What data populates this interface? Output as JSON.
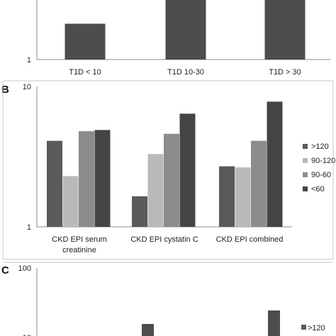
{
  "palette": {
    ">120": "#5a5a5a",
    "90-120": "#b9b9b9",
    "90-60": "#8c8c8c",
    "<60": "#444444",
    "single": "#4d4d4d"
  },
  "chart_data": [
    {
      "panel_label": "",
      "type": "bar",
      "scale": "log",
      "ylim": [
        1,
        10
      ],
      "yticks": [
        "1"
      ],
      "categories": [
        "T1D < 10",
        "T1D 10-30",
        "T1D > 30"
      ],
      "series": [
        {
          "values": [
            1.8,
            4.5,
            4.5
          ]
        }
      ],
      "note": ""
    },
    {
      "panel_label": "B",
      "type": "bar",
      "scale": "log",
      "ylim": [
        1,
        10
      ],
      "yticks": [
        "1",
        "10"
      ],
      "categories": [
        "CKD EPI serum creatinine",
        "CKD EPI cystatin C",
        "CKD EPI combined"
      ],
      "category_lines": [
        [
          "CKD EPI serum",
          "creatinine"
        ],
        [
          "CKD EPI cystatin C"
        ],
        [
          "CKD EPI combined"
        ]
      ],
      "legend_position": "right",
      "series": [
        {
          "name": ">120",
          "values": [
            4.1,
            1.65,
            2.7
          ]
        },
        {
          "name": "90-120",
          "values": [
            2.3,
            3.3,
            2.65
          ]
        },
        {
          "name": "90-60",
          "values": [
            4.8,
            4.6,
            4.1
          ]
        },
        {
          "name": "<60",
          "values": [
            4.9,
            6.4,
            7.8
          ]
        }
      ]
    },
    {
      "panel_label": "C",
      "type": "bar",
      "scale": "log",
      "ylim": [
        1,
        100
      ],
      "yticks": [
        "100",
        "10"
      ],
      "legend_position": "right",
      "legend": [
        ">120"
      ]
    }
  ]
}
